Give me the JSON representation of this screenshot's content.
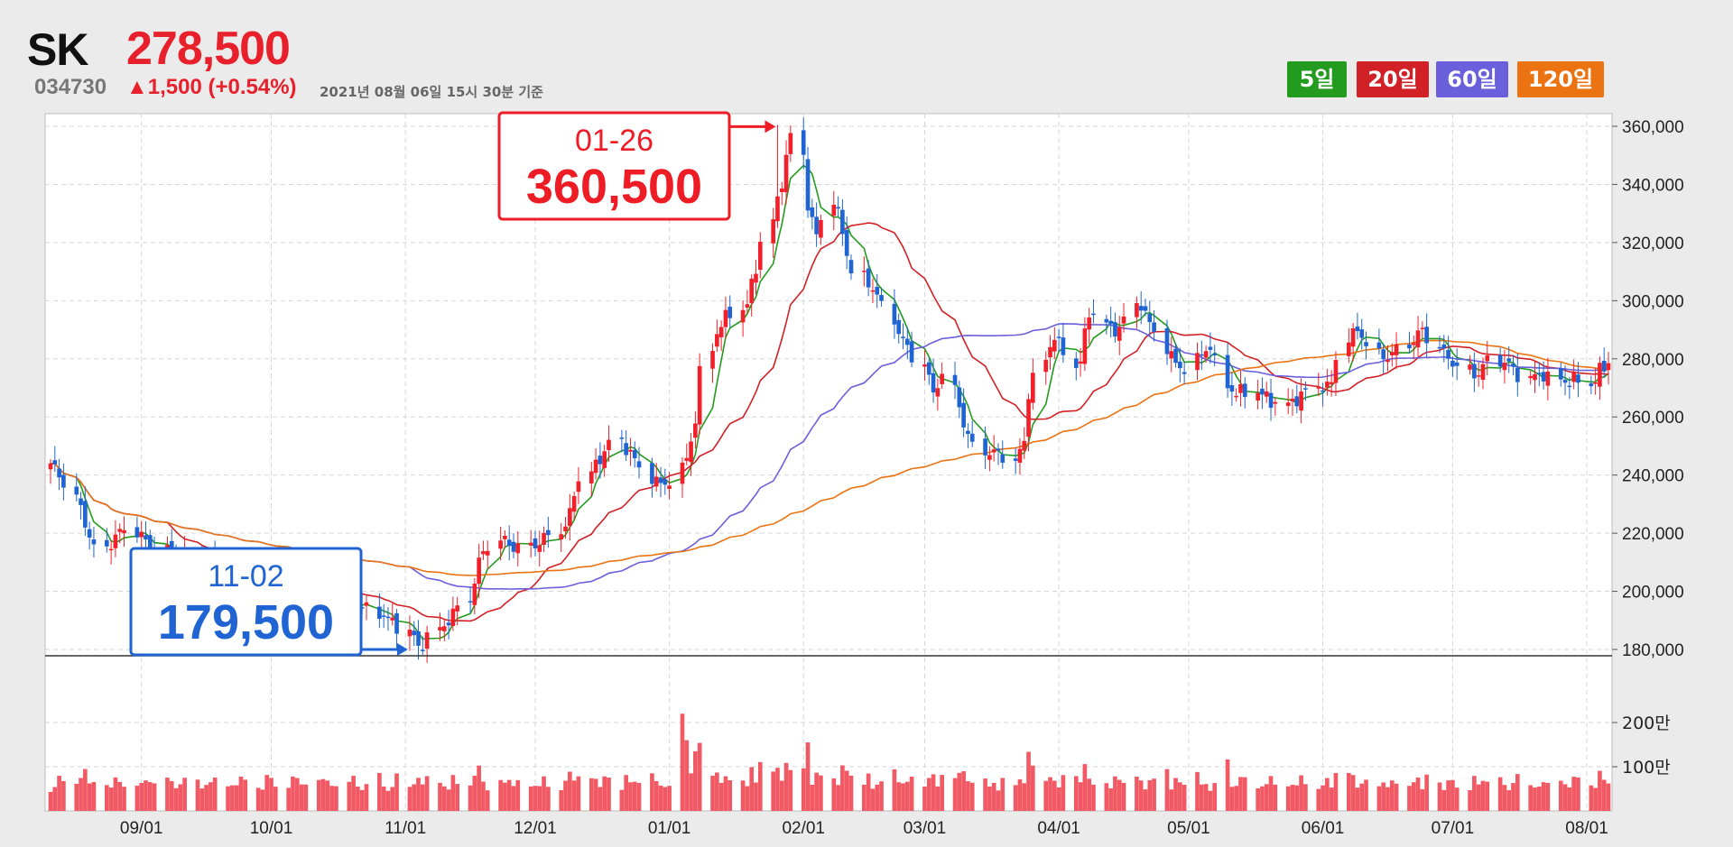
{
  "stock": {
    "name": "SK",
    "price": "278,500",
    "code": "034730",
    "change": "▲1,500 (+0.54%)",
    "as_of": "2021년 08월 06일 15시 30분 기준"
  },
  "legend": [
    {
      "id": "ma5",
      "label": "5일",
      "color": "#239b1e"
    },
    {
      "id": "ma20",
      "label": "20일",
      "color": "#d22126"
    },
    {
      "id": "ma60",
      "label": "60일",
      "color": "#6b60dc"
    },
    {
      "id": "ma120",
      "label": "120일",
      "color": "#eb7312"
    }
  ],
  "colors": {
    "up": "#f2202a",
    "down": "#1f64d2",
    "volume": "#f15a64",
    "high_box": "#ee1c25",
    "low_box": "#1f64d2"
  },
  "annotations": {
    "high": {
      "date": "01-26",
      "value": "360,500"
    },
    "low": {
      "date": "11-02",
      "value": "179,500"
    }
  },
  "chart_data": {
    "type": "candlestick",
    "x_range": [
      "2020-08-11",
      "2021-08-06"
    ],
    "x_tick_labels": [
      "09/01",
      "10/01",
      "11/01",
      "12/01",
      "01/01",
      "02/01",
      "03/01",
      "04/01",
      "05/01",
      "06/01",
      "07/01",
      "08/01"
    ],
    "price_axis": {
      "ylim": [
        180000,
        360000
      ],
      "tick_labels": [
        "360,000",
        "340,000",
        "320,000",
        "300,000",
        "280,000",
        "260,000",
        "240,000",
        "220,000",
        "200,000",
        "180,000"
      ]
    },
    "volume_axis": {
      "tick_labels": [
        "200만",
        "100만"
      ]
    },
    "grid": true,
    "close_anchors": [
      [
        0,
        244000
      ],
      [
        3,
        238000
      ],
      [
        6,
        225000
      ],
      [
        9,
        213000
      ],
      [
        12,
        220000
      ],
      [
        15,
        221000
      ],
      [
        18,
        215000
      ],
      [
        23,
        212000
      ],
      [
        27,
        210000
      ],
      [
        32,
        205000
      ],
      [
        37,
        204000
      ],
      [
        42,
        201000
      ],
      [
        47,
        197000
      ],
      [
        52,
        196000
      ],
      [
        56,
        194000
      ],
      [
        60,
        190000
      ],
      [
        63,
        186000
      ],
      [
        65,
        180000
      ],
      [
        67,
        185000
      ],
      [
        70,
        190000
      ],
      [
        73,
        196000
      ],
      [
        76,
        213000
      ],
      [
        79,
        218000
      ],
      [
        82,
        215000
      ],
      [
        85,
        216000
      ],
      [
        88,
        219000
      ],
      [
        91,
        224000
      ],
      [
        93,
        238000
      ],
      [
        96,
        244000
      ],
      [
        99,
        252000
      ],
      [
        102,
        248000
      ],
      [
        104,
        242000
      ],
      [
        106,
        238000
      ],
      [
        108,
        236000
      ],
      [
        110,
        240000
      ],
      [
        112,
        248000
      ],
      [
        114,
        262000
      ],
      [
        115,
        280000
      ],
      [
        117,
        290000
      ],
      [
        120,
        296000
      ],
      [
        122,
        298000
      ],
      [
        124,
        310000
      ],
      [
        126,
        325000
      ],
      [
        128,
        338000
      ],
      [
        130,
        352000
      ],
      [
        131,
        360000
      ],
      [
        133,
        330000
      ],
      [
        135,
        322000
      ],
      [
        137,
        335000
      ],
      [
        139,
        324000
      ],
      [
        141,
        311000
      ],
      [
        143,
        306000
      ],
      [
        145,
        304000
      ],
      [
        147,
        296000
      ],
      [
        149,
        288000
      ],
      [
        151,
        283000
      ],
      [
        153,
        278000
      ],
      [
        155,
        268000
      ],
      [
        157,
        275000
      ],
      [
        159,
        266000
      ],
      [
        161,
        254000
      ],
      [
        163,
        249000
      ],
      [
        165,
        247000
      ],
      [
        167,
        248000
      ],
      [
        169,
        244000
      ],
      [
        171,
        252000
      ],
      [
        172,
        268000
      ],
      [
        174,
        278000
      ],
      [
        176,
        289000
      ],
      [
        178,
        283000
      ],
      [
        180,
        276000
      ],
      [
        183,
        298000
      ],
      [
        186,
        289000
      ],
      [
        188,
        291000
      ],
      [
        191,
        300000
      ],
      [
        193,
        293000
      ],
      [
        195,
        286000
      ],
      [
        197,
        279000
      ],
      [
        199,
        276000
      ],
      [
        201,
        280000
      ],
      [
        204,
        285000
      ],
      [
        206,
        271000
      ],
      [
        208,
        268000
      ],
      [
        211,
        269000
      ],
      [
        214,
        266000
      ],
      [
        217,
        264000
      ],
      [
        220,
        268000
      ],
      [
        223,
        271000
      ],
      [
        225,
        270000
      ],
      [
        227,
        287000
      ],
      [
        230,
        290000
      ],
      [
        233,
        280000
      ],
      [
        236,
        282000
      ],
      [
        238,
        285000
      ],
      [
        241,
        290000
      ],
      [
        244,
        282000
      ],
      [
        247,
        278000
      ],
      [
        250,
        274000
      ],
      [
        253,
        280000
      ],
      [
        256,
        278000
      ],
      [
        259,
        273000
      ],
      [
        262,
        275000
      ],
      [
        265,
        272000
      ],
      [
        268,
        273000
      ],
      [
        270,
        271000
      ],
      [
        272,
        276000
      ],
      [
        274,
        278500
      ]
    ],
    "series": [
      {
        "name": "5일",
        "period": 5
      },
      {
        "name": "20일",
        "period": 20
      },
      {
        "name": "60일",
        "period": 60
      },
      {
        "name": "120일",
        "period": 120
      }
    ],
    "highlight_high": {
      "date": "2021-01-26",
      "value": 360500
    },
    "highlight_low": {
      "date": "2020-11-02",
      "value": 179500
    }
  }
}
